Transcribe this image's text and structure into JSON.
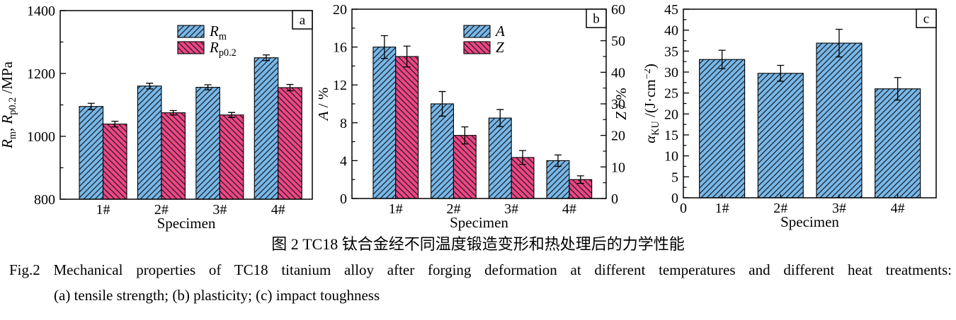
{
  "colors": {
    "blue": "#77b8e8",
    "pink": "#ef4683",
    "hatch_line": "#1a1a24",
    "axis": "#000000",
    "background": "#ffffff"
  },
  "caption": {
    "chinese": "图 2  TC18 钛合金经不同温度锻造变形和热处理后的力学性能",
    "english": "Fig.2  Mechanical properties of TC18 titanium alloy after forging deformation at different temperatures and different heat treatments:",
    "parts": "(a) tensile strength; (b) plasticity; (c) impact toughness"
  },
  "chart_data": [
    {
      "type": "bar",
      "panel_label": "a",
      "title": "tensile strength",
      "xlabel": "Specimen",
      "categories": [
        "1#",
        "2#",
        "3#",
        "4#"
      ],
      "legend_position": "upper-center",
      "grid": false,
      "left_axis": {
        "label_rich": [
          {
            "t": "R",
            "s": "i"
          },
          {
            "t": "m",
            "s": "sub"
          },
          {
            "t": ", ",
            "s": "n"
          },
          {
            "t": "R",
            "s": "i"
          },
          {
            "t": "p0.2",
            "s": "sub"
          },
          {
            "t": " /MPa",
            "s": "n"
          }
        ],
        "label_text": "Rm, Rp0.2 /MPa",
        "min": 800,
        "max": 1400,
        "major_ticks": [
          800,
          1000,
          1200,
          1400
        ],
        "minor_step": 100
      },
      "series": [
        {
          "name": "Rm",
          "label_rich": [
            {
              "t": "R",
              "s": "i"
            },
            {
              "t": "m",
              "s": "sub"
            }
          ],
          "color_key": "blue",
          "hatch": "fwd",
          "axis": "left",
          "values": [
            1095,
            1160,
            1156,
            1250
          ],
          "errors": [
            10,
            9,
            8,
            9
          ]
        },
        {
          "name": "Rp0.2",
          "label_rich": [
            {
              "t": "R",
              "s": "i"
            },
            {
              "t": "p0.2",
              "s": "sub"
            }
          ],
          "color_key": "pink",
          "hatch": "back",
          "axis": "left",
          "values": [
            1039,
            1075,
            1068,
            1155
          ],
          "errors": [
            9,
            7,
            8,
            10
          ]
        }
      ]
    },
    {
      "type": "bar",
      "panel_label": "b",
      "title": "plasticity",
      "xlabel": "Specimen",
      "categories": [
        "1#",
        "2#",
        "3#",
        "4#"
      ],
      "legend_position": "upper-center",
      "grid": false,
      "left_axis": {
        "label_rich": [
          {
            "t": "A",
            "s": "i"
          },
          {
            "t": " / %",
            "s": "n"
          }
        ],
        "label_text": "A / %",
        "min": 0,
        "max": 20,
        "major_ticks": [
          0,
          4,
          8,
          12,
          16,
          20
        ],
        "minor_step": 2
      },
      "right_axis": {
        "label_rich": [
          {
            "t": "Z",
            "s": "i"
          },
          {
            "t": " / %",
            "s": "n"
          }
        ],
        "label_text": "Z / %",
        "min": 0,
        "max": 60,
        "major_ticks": [
          0,
          10,
          20,
          30,
          40,
          50,
          60
        ],
        "minor_step": 5
      },
      "series": [
        {
          "name": "A",
          "label_rich": [
            {
              "t": "A",
              "s": "i"
            }
          ],
          "color_key": "blue",
          "hatch": "fwd",
          "axis": "left",
          "values": [
            16.0,
            10.0,
            8.5,
            4.0
          ],
          "errors": [
            1.2,
            1.3,
            0.9,
            0.6
          ]
        },
        {
          "name": "Z",
          "label_rich": [
            {
              "t": "Z",
              "s": "i"
            }
          ],
          "color_key": "pink",
          "hatch": "back",
          "axis": "right",
          "values": [
            45,
            20,
            13,
            6
          ],
          "errors": [
            3.3,
            2.7,
            2.2,
            1.2
          ]
        }
      ]
    },
    {
      "type": "bar",
      "panel_label": "c",
      "title": "impact toughness",
      "xlabel": "Specimen",
      "categories": [
        "1#",
        "2#",
        "3#",
        "4#"
      ],
      "x_origin_label": "0",
      "legend_position": "none",
      "grid": false,
      "left_axis": {
        "label_rich": [
          {
            "t": "α",
            "s": "i"
          },
          {
            "t": "KU",
            "s": "sub"
          },
          {
            "t": " /(J·cm",
            "s": "n"
          },
          {
            "t": "−2",
            "s": "sup"
          },
          {
            "t": ")",
            "s": "n"
          }
        ],
        "label_text": "αKU /(J·cm−2)",
        "min": 0,
        "max": 45,
        "major_ticks": [
          0,
          5,
          10,
          15,
          20,
          25,
          30,
          35,
          40,
          45
        ],
        "minor_step": 2.5
      },
      "series": [
        {
          "name": "aKU",
          "label_rich": null,
          "color_key": "blue",
          "hatch": "fwd",
          "axis": "left",
          "values": [
            33,
            29.7,
            36.9,
            26
          ],
          "errors": [
            2.2,
            1.9,
            3.3,
            2.7
          ]
        }
      ]
    }
  ]
}
